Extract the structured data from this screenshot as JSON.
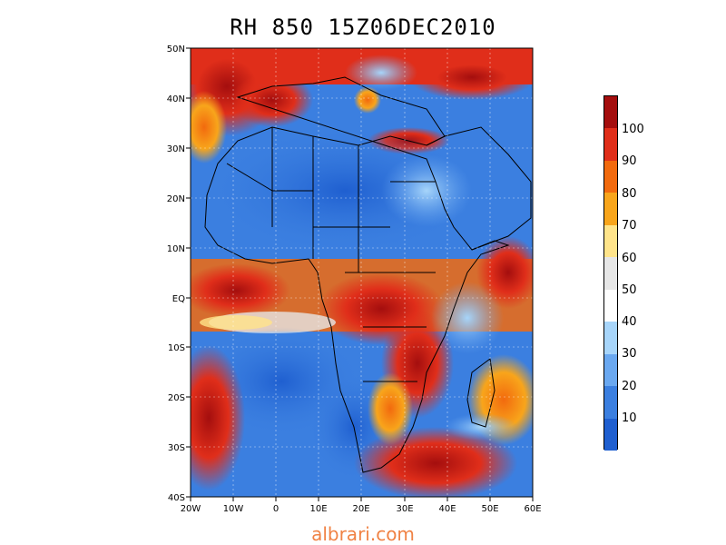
{
  "title": "RH 850 15Z06DEC2010",
  "watermark": "albrari.com",
  "map": {
    "lat_labels": [
      "50N",
      "40N",
      "30N",
      "20N",
      "10N",
      "EQ",
      "10S",
      "20S",
      "30S",
      "40S"
    ],
    "lon_labels": [
      "20W",
      "10W",
      "0",
      "10E",
      "20E",
      "30E",
      "40E",
      "50E",
      "60E"
    ],
    "lat_range": [
      -40,
      50
    ],
    "lon_range": [
      -20,
      60
    ]
  },
  "colorbar": {
    "labels": [
      "100",
      "90",
      "80",
      "70",
      "60",
      "50",
      "40",
      "30",
      "20",
      "10"
    ],
    "colors": [
      "#1f5fd0",
      "#3b7fe0",
      "#6aa8f0",
      "#a7d5fa",
      "#ffffff",
      "#e6e6e6",
      "#ffe48a",
      "#f8a51b",
      "#f26a0e",
      "#e02e1a",
      "#a40e0e"
    ]
  }
}
